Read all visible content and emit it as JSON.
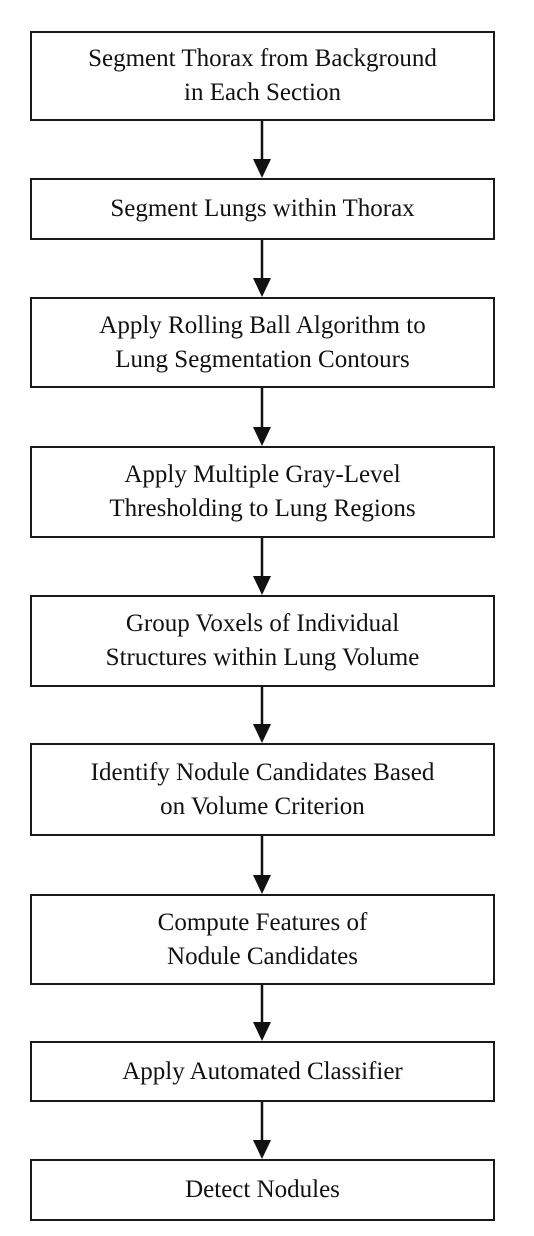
{
  "steps": [
    {
      "text": "Segment Thorax from Background\nin Each Section"
    },
    {
      "text": "Segment Lungs within Thorax"
    },
    {
      "text": "Apply Rolling Ball Algorithm to\nLung Segmentation Contours"
    },
    {
      "text": "Apply Multiple Gray-Level\nThresholding to Lung Regions"
    },
    {
      "text": "Group Voxels of Individual\nStructures within Lung Volume"
    },
    {
      "text": "Identify Nodule Candidates Based\non Volume Criterion"
    },
    {
      "text": "Compute Features of\nNodule Candidates"
    },
    {
      "text": "Apply Automated Classifier"
    },
    {
      "text": "Detect Nodules"
    }
  ]
}
